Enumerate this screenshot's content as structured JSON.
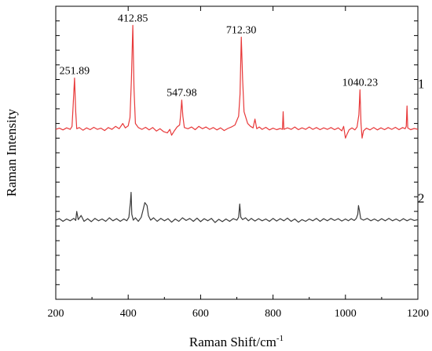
{
  "chart_data": {
    "type": "line",
    "title": "",
    "xlabel": "Raman Shift/cm",
    "xlabel_sup": "-1",
    "ylabel": "Raman Intensity",
    "xlim": [
      200,
      1200
    ],
    "ylim": [
      0,
      100
    ],
    "x_ticks": [
      "200",
      "400",
      "600",
      "800",
      "1000",
      "1200"
    ],
    "x_tick_values": [
      200,
      400,
      600,
      800,
      1000,
      1200
    ],
    "y_ticks_shown": false,
    "grid": false,
    "legend": "none",
    "series": [
      {
        "name": "1",
        "color": "#e8393a",
        "baseline": 58,
        "points": [
          [
            200,
            58.0
          ],
          [
            210,
            58.4
          ],
          [
            220,
            57.8
          ],
          [
            230,
            58.5
          ],
          [
            240,
            58.0
          ],
          [
            245,
            59.0
          ],
          [
            248,
            66.0
          ],
          [
            251.89,
            75.5
          ],
          [
            255,
            64.0
          ],
          [
            258,
            58.2
          ],
          [
            265,
            58.6
          ],
          [
            275,
            57.7
          ],
          [
            285,
            58.5
          ],
          [
            295,
            57.9
          ],
          [
            305,
            58.7
          ],
          [
            315,
            58.0
          ],
          [
            325,
            58.4
          ],
          [
            335,
            57.6
          ],
          [
            345,
            58.6
          ],
          [
            355,
            58.0
          ],
          [
            365,
            59.0
          ],
          [
            375,
            58.2
          ],
          [
            385,
            60.0
          ],
          [
            392,
            58.5
          ],
          [
            400,
            59.2
          ],
          [
            405,
            62.0
          ],
          [
            409,
            75.0
          ],
          [
            412.85,
            93.5
          ],
          [
            416,
            72.0
          ],
          [
            420,
            60.0
          ],
          [
            428,
            58.6
          ],
          [
            438,
            58.0
          ],
          [
            448,
            58.7
          ],
          [
            458,
            57.8
          ],
          [
            468,
            58.6
          ],
          [
            478,
            57.4
          ],
          [
            488,
            58.2
          ],
          [
            498,
            57.2
          ],
          [
            508,
            56.8
          ],
          [
            515,
            58.0
          ],
          [
            520,
            56.0
          ],
          [
            528,
            57.6
          ],
          [
            535,
            58.8
          ],
          [
            542,
            59.5
          ],
          [
            545,
            63.0
          ],
          [
            547.98,
            68.0
          ],
          [
            551,
            62.5
          ],
          [
            555,
            58.6
          ],
          [
            565,
            58.2
          ],
          [
            575,
            58.8
          ],
          [
            585,
            57.9
          ],
          [
            595,
            59.0
          ],
          [
            605,
            58.2
          ],
          [
            615,
            58.8
          ],
          [
            625,
            58.0
          ],
          [
            635,
            58.6
          ],
          [
            645,
            57.8
          ],
          [
            655,
            58.5
          ],
          [
            665,
            57.6
          ],
          [
            675,
            58.3
          ],
          [
            685,
            58.8
          ],
          [
            695,
            59.5
          ],
          [
            700,
            61.0
          ],
          [
            705,
            62.5
          ],
          [
            709,
            70.0
          ],
          [
            712.3,
            89.5
          ],
          [
            716,
            75.0
          ],
          [
            720,
            64.0
          ],
          [
            725,
            62.0
          ],
          [
            730,
            60.0
          ],
          [
            738,
            59.0
          ],
          [
            745,
            58.5
          ],
          [
            750,
            61.5
          ],
          [
            755,
            58.2
          ],
          [
            762,
            58.8
          ],
          [
            770,
            58.0
          ],
          [
            780,
            58.7
          ],
          [
            790,
            57.8
          ],
          [
            800,
            58.4
          ],
          [
            810,
            57.9
          ],
          [
            820,
            58.3
          ],
          [
            826,
            58.0
          ],
          [
            828,
            64.0
          ],
          [
            830,
            58.0
          ],
          [
            840,
            58.5
          ],
          [
            850,
            58.0
          ],
          [
            860,
            58.8
          ],
          [
            870,
            57.9
          ],
          [
            880,
            58.5
          ],
          [
            890,
            58.0
          ],
          [
            900,
            58.8
          ],
          [
            910,
            58.0
          ],
          [
            920,
            58.6
          ],
          [
            930,
            57.9
          ],
          [
            940,
            58.5
          ],
          [
            950,
            58.0
          ],
          [
            960,
            58.6
          ],
          [
            970,
            57.9
          ],
          [
            980,
            58.5
          ],
          [
            990,
            57.5
          ],
          [
            995,
            59.0
          ],
          [
            1000,
            55.0
          ],
          [
            1005,
            56.5
          ],
          [
            1010,
            57.8
          ],
          [
            1018,
            58.5
          ],
          [
            1026,
            57.8
          ],
          [
            1032,
            58.8
          ],
          [
            1037,
            63.0
          ],
          [
            1040.23,
            71.5
          ],
          [
            1043,
            60.0
          ],
          [
            1046,
            55.0
          ],
          [
            1050,
            57.5
          ],
          [
            1058,
            58.4
          ],
          [
            1068,
            57.8
          ],
          [
            1078,
            58.6
          ],
          [
            1088,
            57.8
          ],
          [
            1098,
            58.5
          ],
          [
            1108,
            57.9
          ],
          [
            1118,
            58.6
          ],
          [
            1128,
            58.0
          ],
          [
            1138,
            58.7
          ],
          [
            1148,
            57.9
          ],
          [
            1158,
            58.6
          ],
          [
            1165,
            58.2
          ],
          [
            1168,
            59.0
          ],
          [
            1170,
            66.0
          ],
          [
            1172,
            58.5
          ],
          [
            1180,
            57.9
          ],
          [
            1190,
            58.3
          ],
          [
            1200,
            58.0
          ]
        ],
        "label": "1",
        "label_x": 1178,
        "label_y": 72
      },
      {
        "name": "2",
        "color": "#3a3a3a",
        "baseline": 27,
        "points": [
          [
            200,
            27.0
          ],
          [
            210,
            27.5
          ],
          [
            220,
            26.6
          ],
          [
            230,
            27.4
          ],
          [
            240,
            26.8
          ],
          [
            250,
            27.6
          ],
          [
            255,
            26.9
          ],
          [
            258,
            30.0
          ],
          [
            262,
            27.2
          ],
          [
            270,
            28.6
          ],
          [
            278,
            26.6
          ],
          [
            288,
            27.5
          ],
          [
            298,
            26.5
          ],
          [
            308,
            27.6
          ],
          [
            318,
            26.8
          ],
          [
            328,
            27.4
          ],
          [
            338,
            26.6
          ],
          [
            348,
            27.8
          ],
          [
            358,
            26.8
          ],
          [
            368,
            27.5
          ],
          [
            378,
            26.6
          ],
          [
            388,
            27.4
          ],
          [
            396,
            26.8
          ],
          [
            402,
            28.0
          ],
          [
            406,
            33.0
          ],
          [
            408,
            36.5
          ],
          [
            410,
            29.0
          ],
          [
            414,
            27.0
          ],
          [
            420,
            27.8
          ],
          [
            428,
            26.6
          ],
          [
            436,
            28.0
          ],
          [
            442,
            31.0
          ],
          [
            446,
            33.0
          ],
          [
            452,
            32.0
          ],
          [
            456,
            28.5
          ],
          [
            462,
            27.0
          ],
          [
            470,
            27.8
          ],
          [
            480,
            26.6
          ],
          [
            490,
            27.6
          ],
          [
            500,
            26.8
          ],
          [
            510,
            27.5
          ],
          [
            520,
            26.3
          ],
          [
            530,
            27.4
          ],
          [
            540,
            26.6
          ],
          [
            550,
            27.8
          ],
          [
            560,
            26.9
          ],
          [
            570,
            27.6
          ],
          [
            580,
            26.6
          ],
          [
            590,
            27.7
          ],
          [
            600,
            26.5
          ],
          [
            610,
            27.5
          ],
          [
            620,
            26.8
          ],
          [
            630,
            27.6
          ],
          [
            640,
            26.2
          ],
          [
            650,
            27.3
          ],
          [
            660,
            26.5
          ],
          [
            670,
            27.4
          ],
          [
            680,
            26.6
          ],
          [
            690,
            27.5
          ],
          [
            700,
            27.0
          ],
          [
            705,
            28.0
          ],
          [
            708,
            32.5
          ],
          [
            711,
            28.0
          ],
          [
            716,
            27.2
          ],
          [
            724,
            27.8
          ],
          [
            732,
            26.8
          ],
          [
            740,
            27.6
          ],
          [
            750,
            26.7
          ],
          [
            760,
            27.5
          ],
          [
            770,
            26.8
          ],
          [
            780,
            27.4
          ],
          [
            790,
            26.6
          ],
          [
            800,
            27.6
          ],
          [
            810,
            26.7
          ],
          [
            820,
            27.5
          ],
          [
            830,
            26.8
          ],
          [
            840,
            27.7
          ],
          [
            850,
            26.6
          ],
          [
            860,
            27.4
          ],
          [
            870,
            26.3
          ],
          [
            880,
            27.2
          ],
          [
            890,
            26.6
          ],
          [
            900,
            27.4
          ],
          [
            910,
            26.8
          ],
          [
            920,
            27.6
          ],
          [
            930,
            26.6
          ],
          [
            940,
            27.5
          ],
          [
            950,
            26.8
          ],
          [
            960,
            27.6
          ],
          [
            970,
            26.9
          ],
          [
            980,
            27.5
          ],
          [
            990,
            26.7
          ],
          [
            1000,
            27.4
          ],
          [
            1008,
            26.8
          ],
          [
            1016,
            27.5
          ],
          [
            1024,
            26.9
          ],
          [
            1030,
            27.6
          ],
          [
            1034,
            29.0
          ],
          [
            1036,
            32.0
          ],
          [
            1039,
            30.0
          ],
          [
            1042,
            27.5
          ],
          [
            1050,
            27.0
          ],
          [
            1060,
            27.6
          ],
          [
            1070,
            26.8
          ],
          [
            1080,
            27.4
          ],
          [
            1090,
            26.7
          ],
          [
            1100,
            27.5
          ],
          [
            1110,
            26.8
          ],
          [
            1120,
            27.6
          ],
          [
            1130,
            26.8
          ],
          [
            1140,
            27.4
          ],
          [
            1150,
            26.7
          ],
          [
            1160,
            27.5
          ],
          [
            1170,
            26.8
          ],
          [
            1180,
            27.4
          ],
          [
            1190,
            26.9
          ],
          [
            1200,
            27.2
          ]
        ],
        "label": "2",
        "label_x": 1178,
        "label_y": 33
      }
    ],
    "annotations": [
      {
        "text": "251.89",
        "x": 251.89,
        "y": 75.5
      },
      {
        "text": "412.85",
        "x": 412.85,
        "y": 93.5
      },
      {
        "text": "547.98",
        "x": 547.98,
        "y": 68.0
      },
      {
        "text": "712.30",
        "x": 712.3,
        "y": 89.5
      },
      {
        "text": "1040.23",
        "x": 1040.23,
        "y": 71.5
      }
    ]
  }
}
